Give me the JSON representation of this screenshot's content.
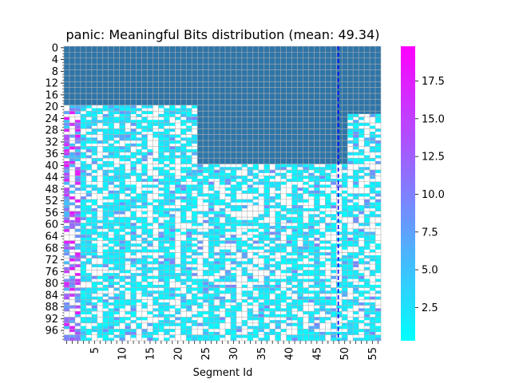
{
  "chart_data": {
    "type": "heatmap",
    "title": "panic: Meaningful Bits distribution (mean: 49.34)",
    "xlabel": "Segment Id",
    "ylabel": "",
    "n_rows": 100,
    "n_cols": 57,
    "x_tick_labels": [
      "5",
      "10",
      "15",
      "20",
      "25",
      "30",
      "35",
      "40",
      "45",
      "50",
      "55"
    ],
    "x_tick_values": [
      5,
      10,
      15,
      20,
      25,
      30,
      35,
      40,
      45,
      50,
      55
    ],
    "y_tick_labels": [
      "0",
      "4",
      "8",
      "12",
      "16",
      "20",
      "24",
      "28",
      "32",
      "36",
      "40",
      "44",
      "48",
      "52",
      "56",
      "60",
      "64",
      "68",
      "72",
      "76",
      "80",
      "84",
      "88",
      "92",
      "96"
    ],
    "y_tick_values": [
      0,
      4,
      8,
      12,
      16,
      20,
      24,
      28,
      32,
      36,
      40,
      44,
      48,
      52,
      56,
      60,
      64,
      68,
      72,
      76,
      80,
      84,
      88,
      92,
      96
    ],
    "mean_line": {
      "x": 49.34,
      "color": "#0000ff",
      "style": "dashed"
    },
    "masked_color": "#2e75a8",
    "masked_regions": [
      {
        "cols": [
          0,
          56
        ],
        "rows": [
          0,
          19
        ]
      },
      {
        "cols": [
          24,
          50
        ],
        "rows": [
          20,
          39
        ]
      },
      {
        "cols": [
          51,
          56
        ],
        "rows": [
          20,
          22
        ]
      }
    ],
    "colorbar": {
      "colormap": "cool",
      "range": [
        0.3,
        19.8
      ],
      "min_color": "#00ffff",
      "max_color": "#ff00ff",
      "ticks": [
        "2.5",
        "5.0",
        "7.5",
        "10.0",
        "12.5",
        "15.0",
        "17.5"
      ],
      "tick_values": [
        2.5,
        5.0,
        7.5,
        10.0,
        12.5,
        15.0,
        17.5
      ]
    },
    "grid": true,
    "grid_color": "#b0b0b0",
    "note_values": "Cell values are a visual estimate: unmasked cells are mostly low (cyan, ~0.5-3), higher (purple/magenta, up to ~19) in segments 0-2, many cells blank (white)."
  }
}
